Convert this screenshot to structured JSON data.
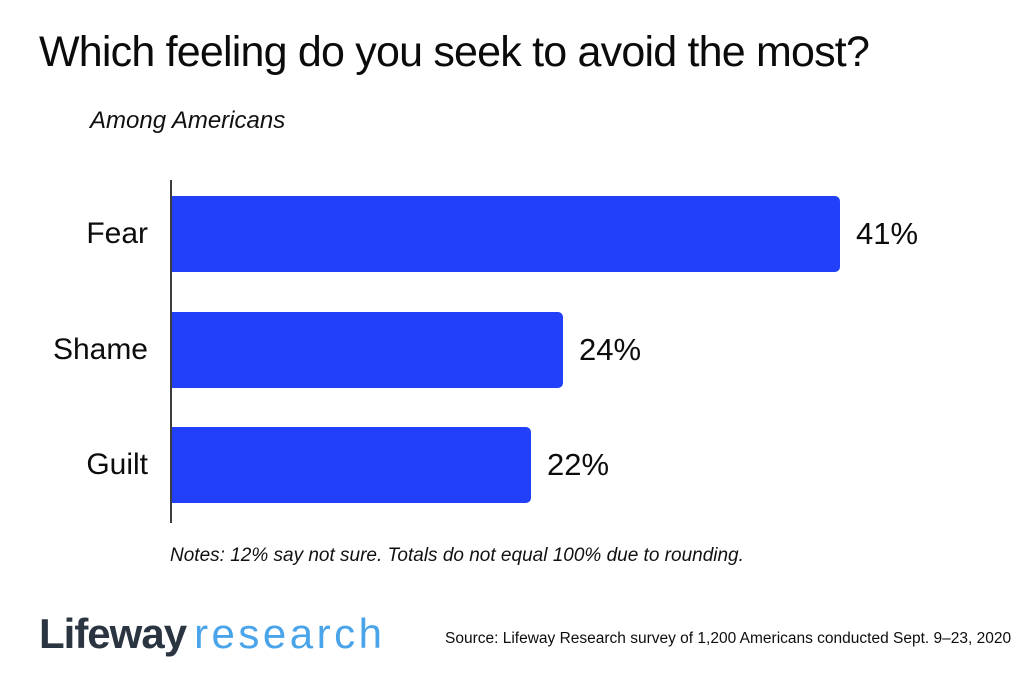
{
  "header": {
    "title": "Which feeling do you seek to avoid the most?",
    "subtitle": "Among Americans"
  },
  "chart_data": {
    "type": "bar",
    "orientation": "horizontal",
    "title": "Which feeling do you seek to avoid the most?",
    "subtitle": "Among Americans",
    "categories": [
      "Fear",
      "Shame",
      "Guilt"
    ],
    "values": [
      41,
      24,
      22
    ],
    "value_labels": [
      "41%",
      "24%",
      "22%"
    ],
    "xlabel": "",
    "ylabel": "",
    "xlim": [
      0,
      45
    ],
    "grid": false,
    "legend": "none",
    "bar_color": "#2240fa",
    "axis_color": "#3d3d3d"
  },
  "notes": "Notes: 12% say not sure. Totals do not equal 100% due to rounding.",
  "footer": {
    "logo_primary": "Lifeway",
    "logo_secondary": "research",
    "logo_primary_color": "#2b3541",
    "logo_secondary_color": "#4aa4e9",
    "source": "Source: Lifeway Research survey of 1,200 Americans conducted Sept. 9–23, 2020"
  }
}
